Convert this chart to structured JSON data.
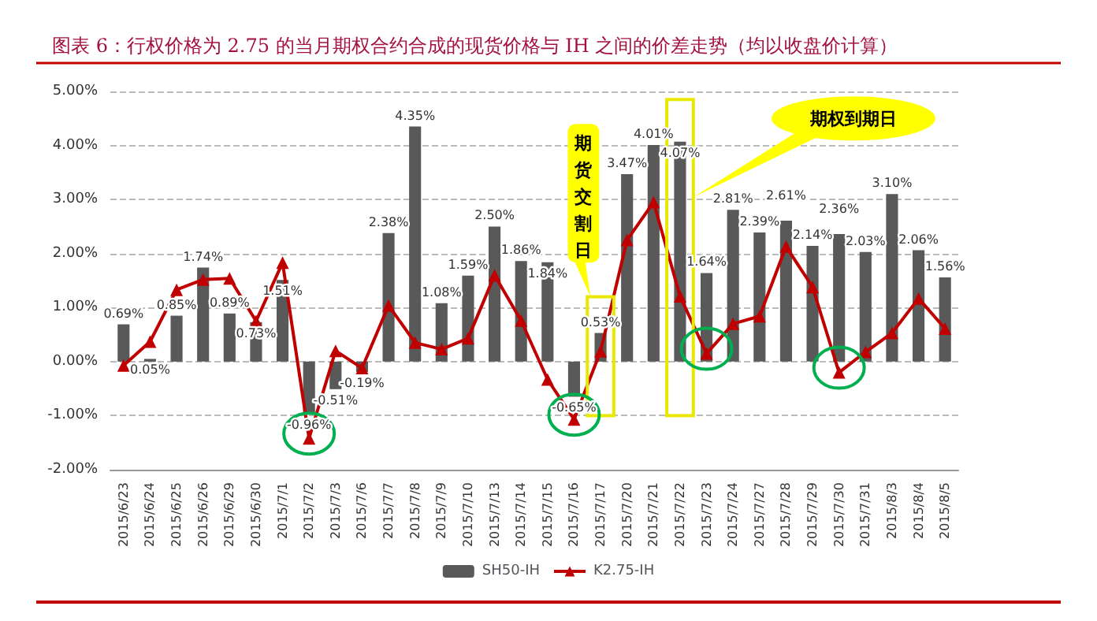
{
  "chart_data": {
    "type": "bar",
    "title": "图表 6：行权价格为 2.75 的当月期权合约合成的现货价格与 IH 之间的价差走势（均以收盘价计算）",
    "categories": [
      "2015/6/23",
      "2015/6/24",
      "2015/6/25",
      "2015/6/26",
      "2015/6/29",
      "2015/6/30",
      "2015/7/1",
      "2015/7/2",
      "2015/7/3",
      "2015/7/6",
      "2015/7/7",
      "2015/7/8",
      "2015/7/9",
      "2015/7/10",
      "2015/7/13",
      "2015/7/14",
      "2015/7/15",
      "2015/7/16",
      "2015/7/17",
      "2015/7/20",
      "2015/7/21",
      "2015/7/22",
      "2015/7/23",
      "2015/7/24",
      "2015/7/27",
      "2015/7/28",
      "2015/7/29",
      "2015/7/30",
      "2015/7/31",
      "2015/8/3",
      "2015/8/4",
      "2015/8/5"
    ],
    "series": [
      {
        "name": "SH50-IH",
        "color": "#595959",
        "values": [
          0.69,
          0.05,
          0.85,
          1.74,
          0.89,
          0.73,
          1.51,
          -0.96,
          -0.51,
          -0.19,
          2.38,
          4.35,
          1.08,
          1.59,
          2.5,
          1.86,
          1.84,
          -0.65,
          0.53,
          3.47,
          4.01,
          4.07,
          1.64,
          2.81,
          2.39,
          2.61,
          2.14,
          2.36,
          2.03,
          3.1,
          2.06,
          1.56
        ],
        "value_labels": [
          "0.69%",
          "0.05%",
          "0.85%",
          "1.74%",
          "0.89%",
          "0.73%",
          "1.51%",
          "-0.96%",
          "-0.51%",
          "-0.19%",
          "2.38%",
          "4.35%",
          "1.08%",
          "1.59%",
          "2.50%",
          "1.86%",
          "1.84%",
          "-0.65%",
          "0.53%",
          "3.47%",
          "4.01%",
          "4.07%",
          "1.64%",
          "2.81%",
          "2.39%",
          "2.61%",
          "2.14%",
          "2.36%",
          "2.03%",
          "3.10%",
          "2.06%",
          "1.56%"
        ]
      },
      {
        "name": "K2.75-IH",
        "type": "line",
        "color": "#c00000",
        "marker": "triangle",
        "values": [
          -0.07,
          0.37,
          1.33,
          1.52,
          1.54,
          0.75,
          1.83,
          -1.42,
          0.2,
          -0.12,
          1.04,
          0.35,
          0.23,
          0.43,
          1.6,
          0.76,
          -0.33,
          -1.07,
          0.19,
          2.25,
          2.95,
          1.21,
          0.15,
          0.7,
          0.84,
          2.13,
          1.38,
          -0.2,
          0.18,
          0.53,
          1.17,
          0.61
        ]
      }
    ],
    "ylim": [
      -2,
      5
    ],
    "yticks": [
      {
        "value": -2,
        "label": "-2.00%"
      },
      {
        "value": -1,
        "label": "-1.00%"
      },
      {
        "value": 0,
        "label": "0.00%"
      },
      {
        "value": 1,
        "label": "1.00%"
      },
      {
        "value": 2,
        "label": "2.00%"
      },
      {
        "value": 3,
        "label": "3.00%"
      },
      {
        "value": 4,
        "label": "4.00%"
      },
      {
        "value": 5,
        "label": "5.00%"
      }
    ],
    "grid": "y",
    "legend": "bottom",
    "annotations": [
      "期货交割日",
      "期权到期日"
    ]
  }
}
